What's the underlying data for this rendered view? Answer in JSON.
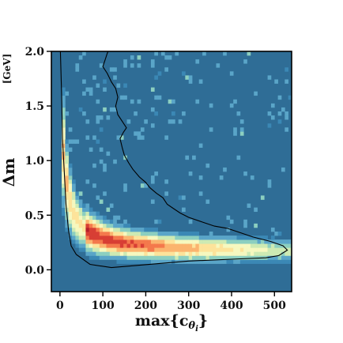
{
  "chart_data": {
    "type": "heatmap",
    "xlabel": "max{c",
    "xlabel_sub": "θ",
    "xlabel_subsub": "i",
    "xlabel_close": "}",
    "ylabel": "Δm",
    "ylabel_unit": "[GeV]",
    "xlim": [
      -20,
      540
    ],
    "ylim": [
      -0.2,
      2.0
    ],
    "xticks": [
      0,
      100,
      200,
      300,
      400,
      500
    ],
    "yticks": [
      0.0,
      0.5,
      1.0,
      1.5,
      2.0
    ],
    "xtick_labels": [
      "0",
      "100",
      "200",
      "300",
      "400",
      "500"
    ],
    "ytick_labels": [
      "0.0",
      "0.5",
      "1.0",
      "1.5",
      "2.0"
    ],
    "bins": {
      "x": 70,
      "y": 60
    },
    "ridge": {
      "a": 15,
      "x0": -8,
      "y0": 0.15,
      "sigma_frac": 0.26
    },
    "colormap": [
      "#2f6d96",
      "#3b88b5",
      "#5aa5c8",
      "#8ccfc0",
      "#cdeab3",
      "#f6f8bf",
      "#fde39a",
      "#fbb46f",
      "#f4794c",
      "#d83e34",
      "#b51f2b"
    ],
    "background_color": "#2f6d96",
    "contour": [
      [
        1,
        2.0
      ],
      [
        4,
        1.6
      ],
      [
        6,
        1.2
      ],
      [
        10,
        0.9
      ],
      [
        14,
        0.6
      ],
      [
        20,
        0.36
      ],
      [
        26,
        0.22
      ],
      [
        38,
        0.14
      ],
      [
        70,
        0.05
      ],
      [
        120,
        0.02
      ],
      [
        180,
        0.04
      ],
      [
        240,
        0.06
      ],
      [
        300,
        0.08
      ],
      [
        360,
        0.09
      ],
      [
        420,
        0.1
      ],
      [
        480,
        0.11
      ],
      [
        510,
        0.13
      ],
      [
        530,
        0.18
      ],
      [
        520,
        0.22
      ],
      [
        490,
        0.26
      ],
      [
        450,
        0.3
      ],
      [
        420,
        0.34
      ],
      [
        390,
        0.38
      ],
      [
        360,
        0.4
      ],
      [
        330,
        0.44
      ],
      [
        300,
        0.48
      ],
      [
        280,
        0.52
      ],
      [
        265,
        0.56
      ],
      [
        250,
        0.6
      ],
      [
        240,
        0.66
      ],
      [
        225,
        0.7
      ],
      [
        210,
        0.75
      ],
      [
        200,
        0.8
      ],
      [
        185,
        0.85
      ],
      [
        170,
        0.92
      ],
      [
        160,
        0.98
      ],
      [
        150,
        1.05
      ],
      [
        145,
        1.12
      ],
      [
        140,
        1.2
      ],
      [
        148,
        1.26
      ],
      [
        155,
        1.3
      ],
      [
        145,
        1.36
      ],
      [
        135,
        1.42
      ],
      [
        130,
        1.5
      ],
      [
        135,
        1.58
      ],
      [
        130,
        1.66
      ],
      [
        120,
        1.72
      ],
      [
        110,
        1.8
      ],
      [
        100,
        1.86
      ],
      [
        105,
        1.92
      ],
      [
        110,
        1.98
      ],
      [
        112,
        2.0
      ]
    ]
  }
}
